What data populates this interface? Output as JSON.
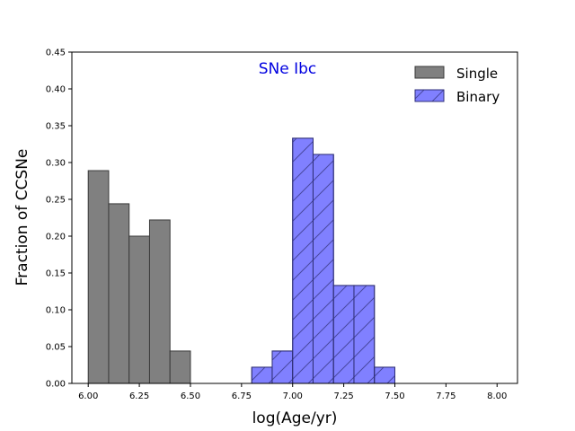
{
  "chart_data": {
    "type": "bar",
    "title": "",
    "xlabel": "log(Age/yr)",
    "ylabel": "Fraction of CCSNe",
    "xlim": [
      5.92,
      8.1
    ],
    "ylim": [
      0,
      0.45
    ],
    "bin_width": 0.1,
    "xticks": [
      "6.00",
      "6.25",
      "6.50",
      "6.75",
      "7.00",
      "7.25",
      "7.50",
      "7.75",
      "8.00"
    ],
    "xtick_values": [
      6.0,
      6.25,
      6.5,
      6.75,
      7.0,
      7.25,
      7.5,
      7.75,
      8.0
    ],
    "yticks": [
      "0.00",
      "0.05",
      "0.10",
      "0.15",
      "0.20",
      "0.25",
      "0.30",
      "0.35",
      "0.40",
      "0.45"
    ],
    "ytick_values": [
      0.0,
      0.05,
      0.1,
      0.15,
      0.2,
      0.25,
      0.3,
      0.35,
      0.4,
      0.45
    ],
    "annotation": {
      "text": "SNe Ibc",
      "color": "#0000e0"
    },
    "legend_position": "top-right",
    "series": [
      {
        "name": "Single",
        "color": "#808080",
        "edge_color": "#3a3a3a",
        "hatch": "none",
        "bins": [
          6.0,
          6.1,
          6.2,
          6.3,
          6.4
        ],
        "values": [
          0.289,
          0.244,
          0.2,
          0.222,
          0.044
        ]
      },
      {
        "name": "Binary",
        "color": "#8080ff",
        "edge_color": "#303078",
        "hatch": "diagonal",
        "bins": [
          6.8,
          6.9,
          7.0,
          7.1,
          7.2,
          7.3,
          7.4
        ],
        "values": [
          0.022,
          0.044,
          0.333,
          0.311,
          0.133,
          0.133,
          0.022
        ]
      }
    ]
  }
}
